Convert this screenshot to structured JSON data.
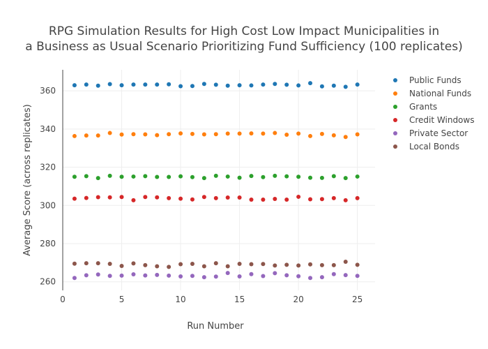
{
  "chart_data": {
    "type": "scatter",
    "title_lines": [
      "RPG Simulation Results for High Cost Low Impact Municipalities in",
      "a Business as Usual Scenario Prioritizing Fund Sufficiency (100 replicates)"
    ],
    "xlabel": "Run Number",
    "ylabel": "Average Score (across replicates)",
    "xlim": [
      0,
      26.5
    ],
    "ylim": [
      255.5,
      371
    ],
    "xticks": [
      0,
      5,
      10,
      15,
      20,
      25
    ],
    "yticks": [
      260,
      280,
      300,
      320,
      340,
      360
    ],
    "grid": true,
    "legend_position": "top-right",
    "x": [
      1,
      2,
      3,
      4,
      5,
      6,
      7,
      8,
      9,
      10,
      11,
      12,
      13,
      14,
      15,
      16,
      17,
      18,
      19,
      20,
      21,
      22,
      23,
      24,
      25
    ],
    "series": [
      {
        "name": "Public Funds",
        "color": "#1f77b4",
        "values": [
          362.9,
          363.3,
          362.7,
          363.5,
          362.9,
          363.3,
          363.3,
          363.3,
          363.4,
          362.4,
          362.5,
          363.6,
          363.2,
          362.7,
          362.9,
          362.8,
          363.3,
          363.6,
          363.2,
          362.8,
          364.0,
          362.3,
          362.7,
          362.1,
          363.3
        ]
      },
      {
        "name": "National Funds",
        "color": "#ff7f0e",
        "values": [
          336.3,
          336.6,
          336.6,
          337.9,
          337.1,
          337.3,
          337.2,
          336.8,
          337.3,
          337.7,
          337.4,
          337.2,
          337.3,
          337.6,
          337.6,
          337.7,
          337.6,
          337.9,
          337.0,
          337.6,
          336.3,
          337.4,
          336.7,
          335.8,
          337.2
        ]
      },
      {
        "name": "Grants",
        "color": "#2ca02c",
        "values": [
          315.0,
          315.3,
          314.3,
          315.5,
          315.0,
          315.1,
          315.3,
          314.9,
          314.9,
          315.2,
          314.8,
          314.3,
          315.5,
          315.1,
          314.5,
          315.4,
          314.8,
          315.5,
          315.2,
          315.0,
          314.5,
          314.4,
          315.3,
          314.3,
          315.1
        ]
      },
      {
        "name": "Credit Windows",
        "color": "#d62728",
        "values": [
          303.5,
          303.9,
          304.3,
          304.2,
          304.4,
          302.7,
          304.4,
          304.2,
          303.8,
          303.5,
          303.1,
          304.4,
          303.8,
          304.1,
          304.1,
          303.0,
          303.0,
          303.4,
          303.0,
          304.5,
          303.2,
          303.3,
          303.8,
          302.7,
          303.8
        ]
      },
      {
        "name": "Private Sector",
        "color": "#9467bd",
        "values": [
          262.0,
          263.4,
          263.8,
          263.1,
          263.2,
          263.9,
          263.3,
          263.6,
          263.2,
          262.8,
          263.1,
          262.4,
          262.7,
          264.6,
          262.8,
          264.0,
          263.0,
          264.5,
          263.4,
          262.9,
          262.0,
          262.4,
          264.0,
          263.5,
          263.1
        ]
      },
      {
        "name": "Local Bonds",
        "color": "#8c564b",
        "values": [
          269.5,
          269.7,
          269.7,
          269.4,
          268.3,
          269.6,
          268.7,
          268.1,
          267.8,
          269.2,
          269.4,
          268.1,
          269.7,
          268.1,
          269.4,
          269.2,
          269.3,
          268.5,
          268.9,
          268.5,
          269.1,
          268.7,
          268.7,
          270.5,
          268.9
        ]
      }
    ]
  }
}
